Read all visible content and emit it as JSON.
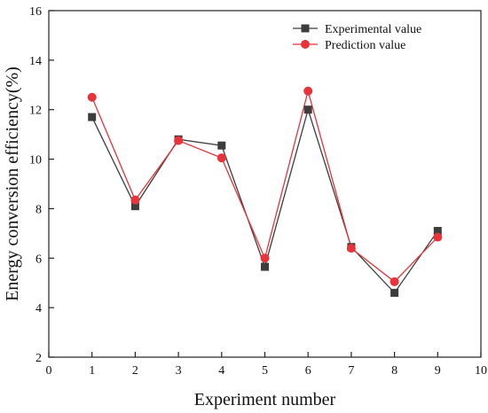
{
  "chart_data": {
    "type": "line",
    "title": "",
    "xlabel": "Experiment number",
    "ylabel": "Energy conversion efficiency(%)",
    "xlim": [
      0,
      10
    ],
    "ylim": [
      2,
      16
    ],
    "xticks": [
      0,
      1,
      2,
      3,
      4,
      5,
      6,
      7,
      8,
      9,
      10
    ],
    "yticks": [
      2,
      4,
      6,
      8,
      10,
      12,
      14,
      16
    ],
    "grid": false,
    "legend_position": "top-right",
    "x": [
      1,
      2,
      3,
      4,
      5,
      6,
      7,
      8,
      9
    ],
    "series": [
      {
        "name": "Experimental value",
        "marker": "square",
        "color": "#3d3d3d",
        "values": [
          11.7,
          8.1,
          10.8,
          10.55,
          5.65,
          12.0,
          6.45,
          4.6,
          7.1
        ]
      },
      {
        "name": "Prediction value",
        "marker": "circle",
        "color": "#e8333a",
        "values": [
          12.5,
          8.35,
          10.75,
          10.05,
          6.0,
          12.75,
          6.4,
          5.05,
          6.85
        ]
      }
    ]
  }
}
